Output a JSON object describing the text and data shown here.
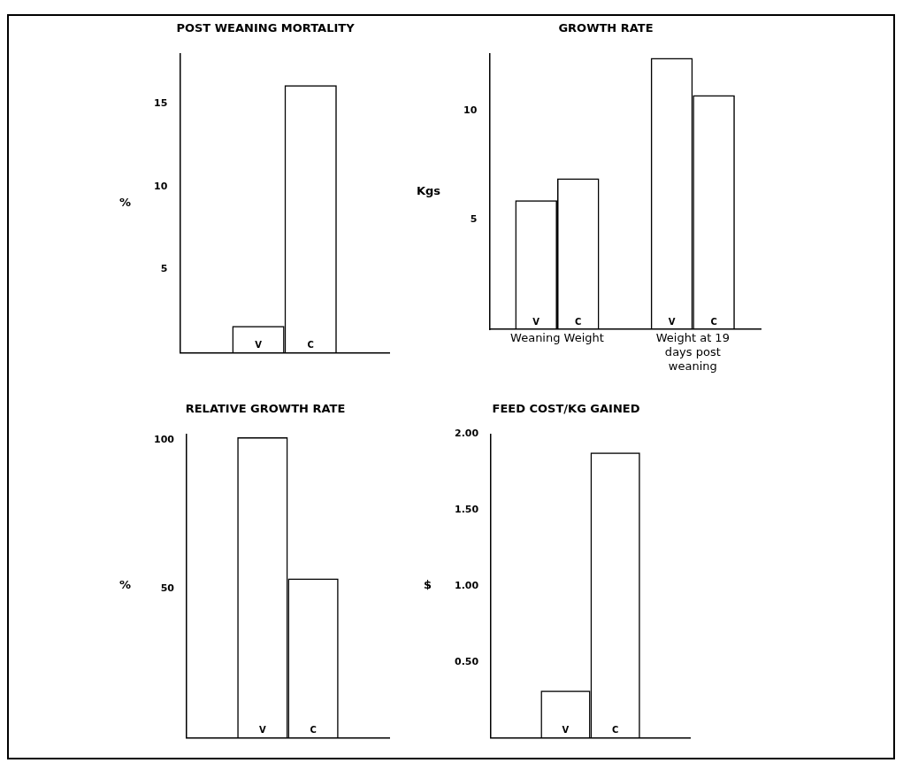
{
  "chart_data": [
    {
      "type": "bar",
      "title": "POST WEANING MORTALITY",
      "ylabel": "%",
      "categories": [
        null
      ],
      "series": [
        {
          "name": "V",
          "color": "#000000",
          "values": [
            1.6
          ]
        },
        {
          "name": "C",
          "color": "#000000",
          "values": [
            16.1
          ]
        }
      ],
      "ylim": [
        0,
        18
      ],
      "yticks": [
        5,
        10,
        15
      ],
      "grid": false
    },
    {
      "type": "bar",
      "title": "GROWTH RATE",
      "ylabel": "Kgs",
      "categories": [
        "Weaning Weight",
        "Weight at 19 days post weaning"
      ],
      "series": [
        {
          "name": "V",
          "color": "#000000",
          "values": [
            5.9,
            12.4
          ]
        },
        {
          "name": "C",
          "color": "#000000",
          "values": [
            6.9,
            10.7
          ]
        }
      ],
      "ylim": [
        0,
        12.6
      ],
      "yticks": [
        5,
        10
      ],
      "grid": false
    },
    {
      "type": "bar",
      "title": "RELATIVE GROWTH RATE",
      "ylabel": "%",
      "categories": [
        null
      ],
      "series": [
        {
          "name": "V",
          "color": "#000000",
          "values": [
            101
          ]
        },
        {
          "name": "C",
          "color": "#000000",
          "values": [
            53.5
          ]
        }
      ],
      "ylim": [
        0,
        102
      ],
      "yticks": [
        50,
        100
      ],
      "grid": false
    },
    {
      "type": "bar",
      "title": "FEED COST/KG GAINED",
      "ylabel": "$",
      "categories": [
        null
      ],
      "series": [
        {
          "name": "V",
          "color": "#000000",
          "values": [
            0.31
          ]
        },
        {
          "name": "C",
          "color": "#000000",
          "values": [
            1.88
          ]
        }
      ],
      "ylim": [
        0,
        2
      ],
      "yticks": [
        {
          "value": 0.5,
          "label": "0.50"
        },
        {
          "value": 1,
          "label": "1.00"
        },
        {
          "value": 1.5,
          "label": "1.50"
        },
        {
          "value": 2,
          "label": "2.00"
        }
      ],
      "grid": false
    }
  ]
}
